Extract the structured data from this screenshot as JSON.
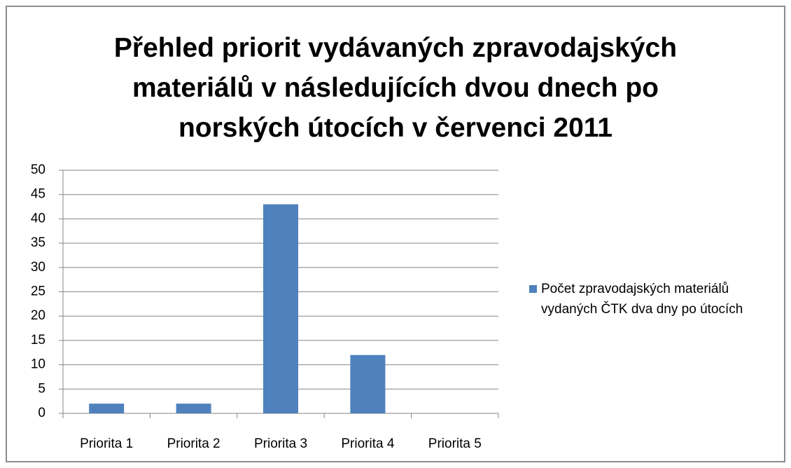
{
  "chart_data": {
    "type": "bar",
    "title": "Přehled priorit vydávaných zpravodajských materiálů v následujících dvou dnech po norských útocích v červenci 2011",
    "categories": [
      "Priorita 1",
      "Priorita 2",
      "Priorita 3",
      "Priorita 4",
      "Priorita 5"
    ],
    "series": [
      {
        "name": "Počet zpravodajských materiálů vydaných ČTK dva dny po útocích",
        "color": "#4f81bd",
        "values": [
          2,
          2,
          43,
          12,
          0
        ]
      }
    ],
    "ylim": [
      0,
      50
    ],
    "yticks": [
      0,
      5,
      10,
      15,
      20,
      25,
      30,
      35,
      40,
      45,
      50
    ],
    "grid": true,
    "legend": "right"
  }
}
